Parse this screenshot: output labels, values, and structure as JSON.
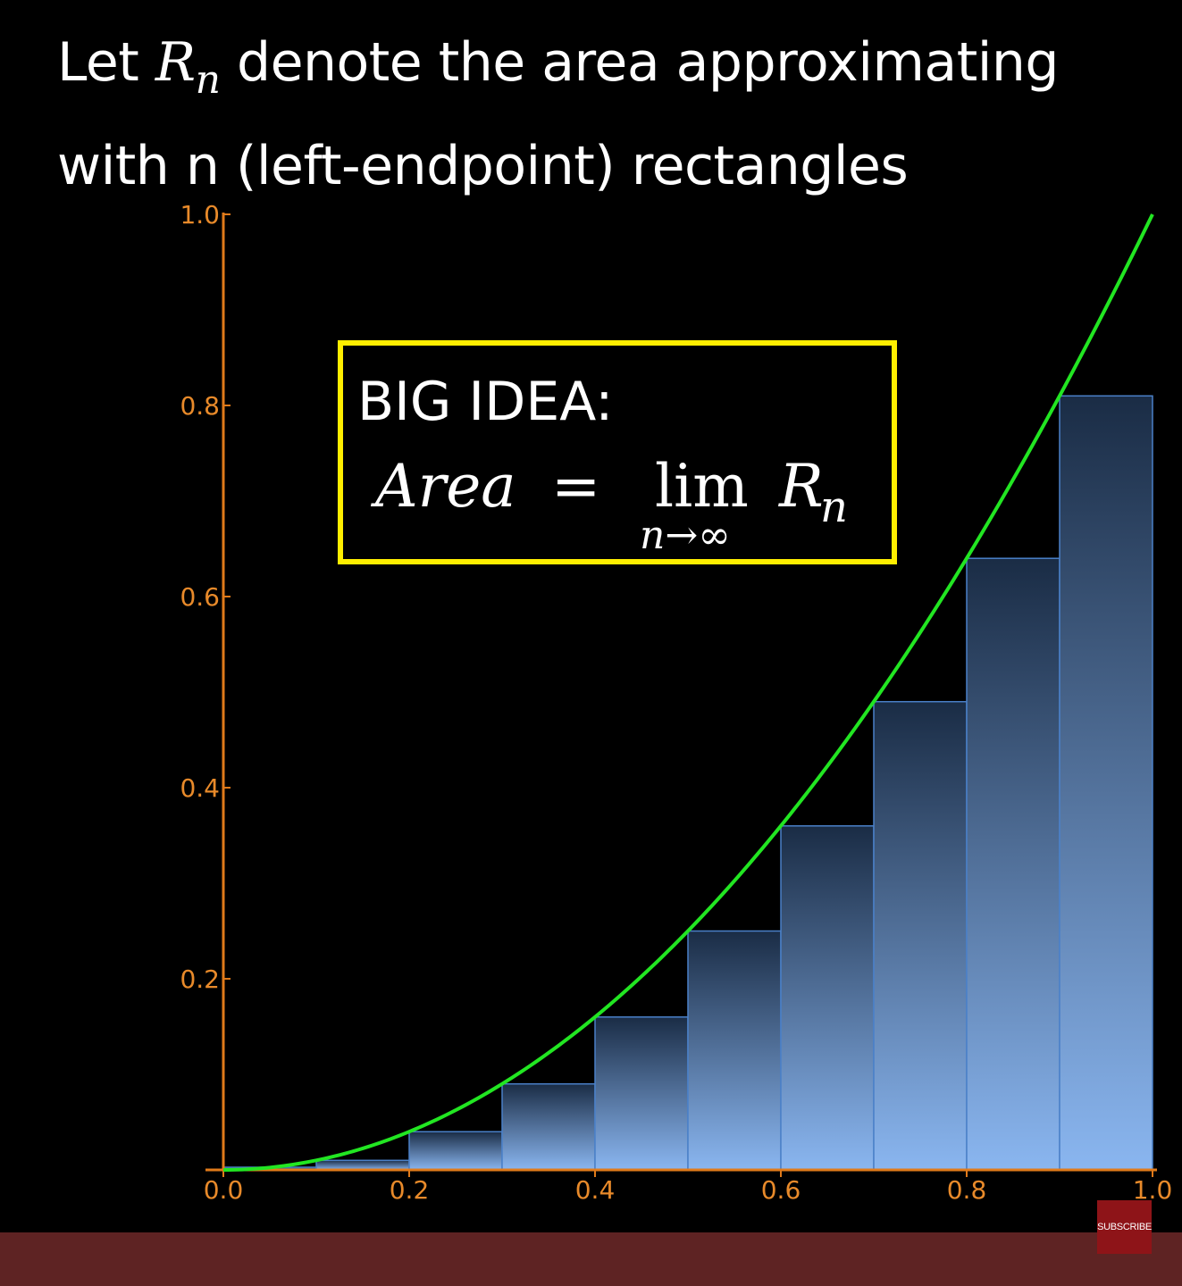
{
  "title": {
    "line1_prefix": "Let ",
    "var": "R",
    "sub": "n",
    "line1_suffix": " denote the area approximating",
    "line2": "with n (left-endpoint) rectangles"
  },
  "big_idea": {
    "heading": "BIG IDEA:",
    "lhs": "Area",
    "equals": "=",
    "lim": "lim",
    "lim_sub": "n→∞",
    "rhs_var": "R",
    "rhs_sub": "n"
  },
  "subscribe_label": "SUBSCRIBE",
  "colors": {
    "axis": "#e07a1a",
    "tick_label": "#e88a2a",
    "curve": "#22e622",
    "bar_top": "#1a2c45",
    "bar_bottom": "#8ab6f0",
    "bar_edge": "#4a80c8",
    "idea_border": "#ffee00",
    "footer": "#5e2323",
    "subscribe_bg": "#8e1418"
  },
  "chart_data": {
    "type": "bar",
    "function": "x^2",
    "n": 10,
    "rule": "left-endpoint",
    "xlim": [
      0,
      1
    ],
    "ylim": [
      0,
      1
    ],
    "x_ticks": [
      0.0,
      0.2,
      0.4,
      0.6,
      0.8,
      1.0
    ],
    "x_tick_labels": [
      "0.0",
      "0.2",
      "0.4",
      "0.6",
      "0.8",
      "1.0"
    ],
    "y_ticks": [
      0.2,
      0.4,
      0.6,
      0.8,
      1.0
    ],
    "y_tick_labels": [
      "0.2",
      "0.4",
      "0.6",
      "0.8",
      "1.0"
    ],
    "bars": [
      {
        "x0": 0.0,
        "x1": 0.1,
        "height": 0.0
      },
      {
        "x0": 0.1,
        "x1": 0.2,
        "height": 0.01
      },
      {
        "x0": 0.2,
        "x1": 0.3,
        "height": 0.04
      },
      {
        "x0": 0.3,
        "x1": 0.4,
        "height": 0.09
      },
      {
        "x0": 0.4,
        "x1": 0.5,
        "height": 0.16
      },
      {
        "x0": 0.5,
        "x1": 0.6,
        "height": 0.25
      },
      {
        "x0": 0.6,
        "x1": 0.7,
        "height": 0.36
      },
      {
        "x0": 0.7,
        "x1": 0.8,
        "height": 0.49
      },
      {
        "x0": 0.8,
        "x1": 0.9,
        "height": 0.64
      },
      {
        "x0": 0.9,
        "x1": 1.0,
        "height": 0.81
      }
    ]
  }
}
